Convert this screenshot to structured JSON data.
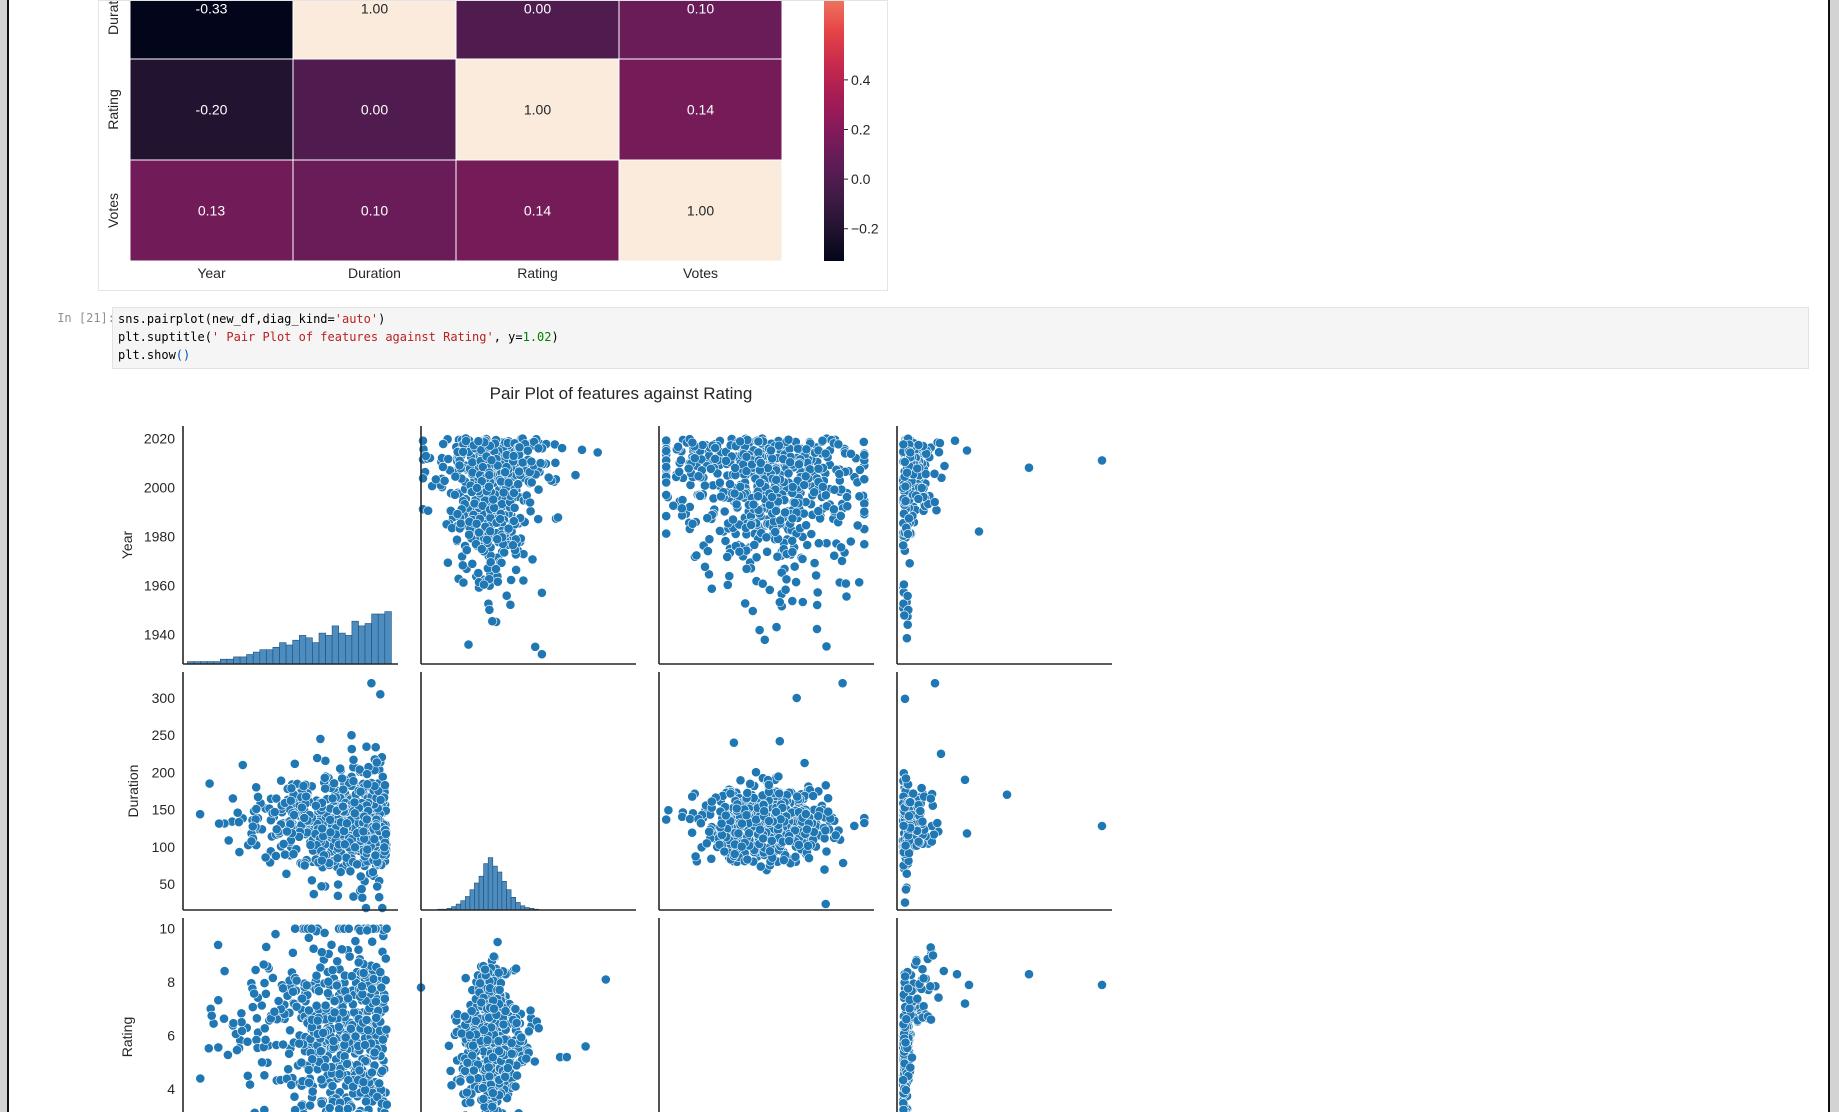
{
  "heatmap": {
    "visible_rows": [
      "Duration",
      "Rating",
      "Votes"
    ],
    "columns": [
      "Year",
      "Duration",
      "Rating",
      "Votes"
    ],
    "values": [
      [
        -0.33,
        1.0,
        0.0,
        0.1
      ],
      [
        -0.2,
        0.0,
        1.0,
        0.14
      ],
      [
        0.13,
        0.1,
        0.14,
        1.0
      ]
    ],
    "labels": [
      [
        "-0.33",
        "1.00",
        "0.00",
        "0.10"
      ],
      [
        "-0.20",
        "0.00",
        "1.00",
        "0.14"
      ],
      [
        "0.13",
        "0.10",
        "0.14",
        "1.00"
      ]
    ],
    "colorbar_ticks": [
      "0.4",
      "0.2",
      "0.0",
      "−0.2"
    ],
    "colorbar_tick_values": [
      0.4,
      0.2,
      0.0,
      -0.2
    ],
    "color_range": [
      -0.33,
      1.0
    ],
    "colormap": "rocket"
  },
  "cell": {
    "prompt": "In [21]:",
    "line1": {
      "code": "sns.pairplot(new_df,diag_kind=",
      "str": "'auto'",
      "end": ")"
    },
    "line2": {
      "code": "plt.suptitle(",
      "str": "' Pair Plot of features against Rating'",
      "mid": ", y=",
      "num": "1.02",
      "end": ")"
    },
    "line3": {
      "code": "plt.show",
      "paren": "()"
    }
  },
  "chart_data": [
    {
      "type": "heatmap",
      "title": "",
      "x_categories": [
        "Year",
        "Duration",
        "Rating",
        "Votes"
      ],
      "y_categories_visible": [
        "Duration",
        "Rating",
        "Votes"
      ],
      "values": [
        [
          -0.33,
          1.0,
          0.0,
          0.1
        ],
        [
          -0.2,
          0.0,
          1.0,
          0.14
        ],
        [
          0.13,
          0.1,
          0.14,
          1.0
        ]
      ],
      "colorbar_ticks": [
        0.4,
        0.2,
        0.0,
        -0.2
      ]
    },
    {
      "type": "scatter",
      "title": "Pair Plot of features against Rating",
      "variables": [
        "Year",
        "Duration",
        "Rating",
        "Votes"
      ],
      "visible_row_labels": [
        "Year",
        "Duration",
        "Rating"
      ],
      "year_ticks": [
        1940,
        1960,
        1980,
        2000,
        2020
      ],
      "duration_ticks": [
        50,
        100,
        150,
        200,
        250,
        300
      ],
      "rating_ticks": [
        4,
        6,
        8,
        10
      ],
      "year_range": [
        1928,
        2025
      ],
      "duration_range": [
        15,
        335
      ],
      "rating_range": [
        1.5,
        10.4
      ],
      "year_hist": [
        1,
        1,
        1,
        1,
        1,
        2,
        2,
        3,
        3,
        4,
        5,
        6,
        6,
        7,
        9,
        8,
        10,
        12,
        11,
        9,
        13,
        12,
        16,
        13,
        12,
        18,
        16,
        17,
        21,
        21,
        22
      ],
      "duration_hist": [
        1,
        1,
        2,
        4,
        7,
        11,
        16,
        24,
        32,
        40,
        55,
        62,
        52,
        45,
        34,
        24,
        15,
        9,
        5,
        3,
        2,
        1
      ],
      "duration_hist_range": [
        40,
        190
      ],
      "point_color": "#1f77b4"
    }
  ]
}
